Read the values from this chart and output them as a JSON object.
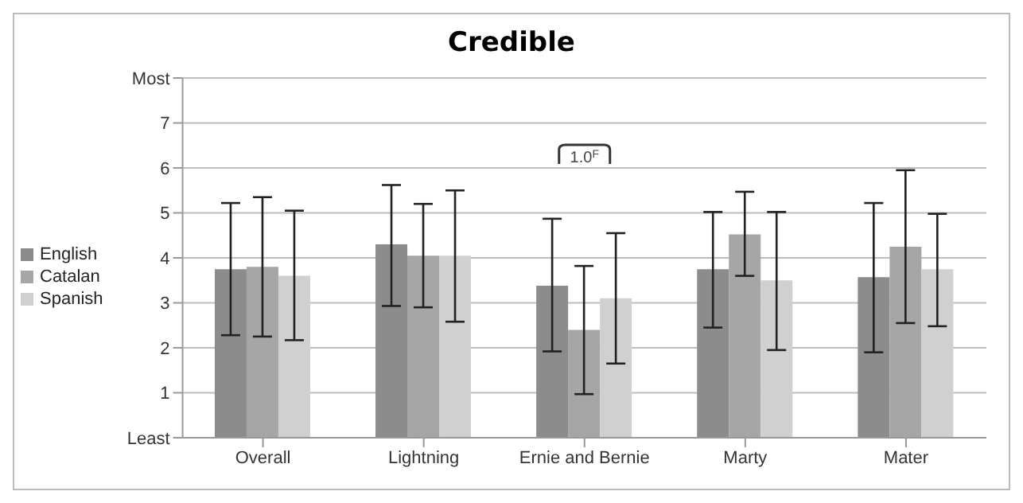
{
  "chart_data": {
    "type": "bar",
    "title": "Credible",
    "categories": [
      "Overall",
      "Lightning",
      "Ernie and Bernie",
      "Marty",
      "Mater"
    ],
    "series": [
      {
        "name": "English",
        "color": "#8c8c8c",
        "values": [
          3.75,
          4.3,
          3.38,
          3.75,
          3.57
        ],
        "errors": [
          [
            2.28,
            5.22
          ],
          [
            2.93,
            5.62
          ],
          [
            1.92,
            4.87
          ],
          [
            2.45,
            5.02
          ],
          [
            1.9,
            5.22
          ]
        ]
      },
      {
        "name": "Catalan",
        "color": "#a6a6a6",
        "values": [
          3.8,
          4.05,
          2.4,
          4.52,
          4.25
        ],
        "errors": [
          [
            2.25,
            5.35
          ],
          [
            2.9,
            5.2
          ],
          [
            0.97,
            3.82
          ],
          [
            3.6,
            5.47
          ],
          [
            2.55,
            5.95
          ]
        ]
      },
      {
        "name": "Spanish",
        "color": "#d0d0d0",
        "values": [
          3.6,
          4.05,
          3.1,
          3.5,
          3.75
        ],
        "errors": [
          [
            2.17,
            5.05
          ],
          [
            2.58,
            5.5
          ],
          [
            1.65,
            4.55
          ],
          [
            1.95,
            5.02
          ],
          [
            2.48,
            4.98
          ]
        ]
      }
    ],
    "ylim": [
      0,
      8
    ],
    "yticks": [
      {
        "value": 0,
        "label": "Least"
      },
      1,
      2,
      3,
      4,
      5,
      6,
      7,
      {
        "value": 8,
        "label": "Most"
      }
    ],
    "grid": "y",
    "legend": "left",
    "annotations": [
      {
        "text": "1.0$^{F}$",
        "x": "Ernie and Bernie",
        "y": 6.3
      }
    ]
  }
}
